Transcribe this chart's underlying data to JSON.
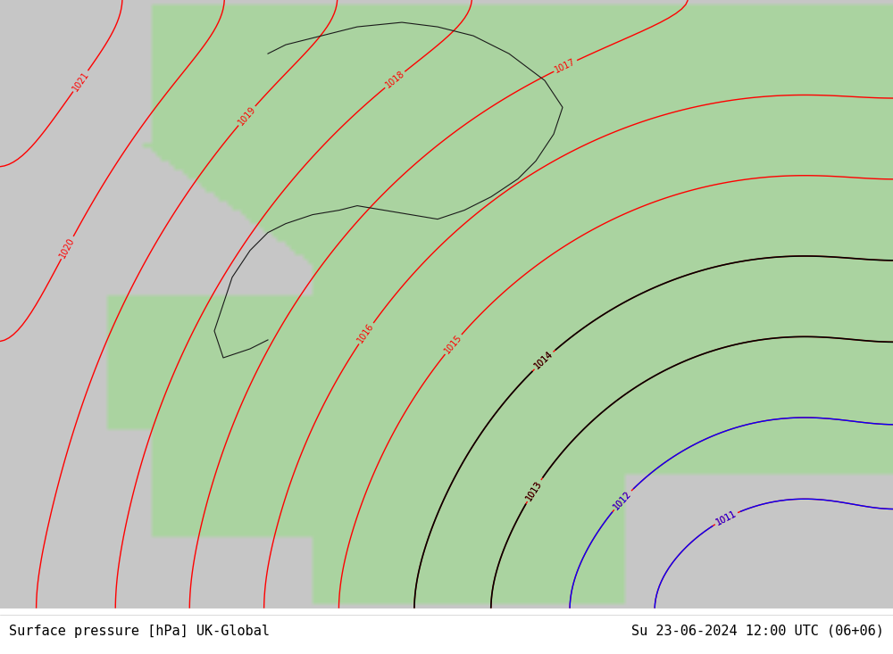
{
  "title_left": "Surface pressure [hPa] UK-Global",
  "title_right": "Su 23-06-2024 12:00 UTC (06+06)",
  "background_color": "#ffffff",
  "ocean_color": "#d8d8d8",
  "land_color": "#aad4a0",
  "text_color_red": "#ff0000",
  "text_color_black": "#000000",
  "text_color_blue": "#0000ff",
  "border_color": "#333333",
  "figsize": [
    10,
    7.33
  ],
  "dpi": 100,
  "bottom_bar_color": "#ffffff",
  "title_fontsize": 11,
  "label_fontsize": 8
}
